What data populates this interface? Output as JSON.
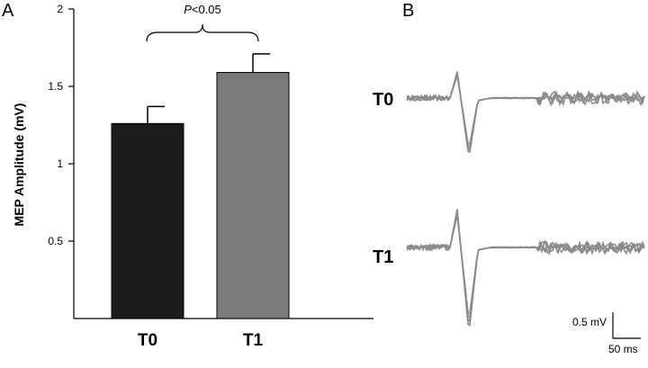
{
  "panels": {
    "a_label": "A",
    "b_label": "B"
  },
  "chart_data": {
    "type": "bar",
    "ylabel": "MEP Amplitude (mV)",
    "ylim": [
      0,
      2
    ],
    "yticks": [
      0.5,
      1,
      1.5,
      2
    ],
    "ytick_labels": [
      "0.5",
      "1",
      "1.5",
      "2"
    ],
    "categories": [
      "T0",
      "T1"
    ],
    "values": [
      1.26,
      1.59
    ],
    "errors": [
      0.11,
      0.12
    ],
    "bar_colors": [
      "#1c1c1c",
      "#7a7a7a"
    ],
    "significance": {
      "p_prefix": "P",
      "p_rest": "<0.05",
      "between": [
        "T0",
        "T1"
      ]
    }
  },
  "traces": {
    "rows": [
      {
        "label": "T0"
      },
      {
        "label": "T1"
      }
    ],
    "trace_color": "#8a8a8a",
    "scale_bar": {
      "amplitude": "0.5 mV",
      "time": "50 ms"
    }
  }
}
